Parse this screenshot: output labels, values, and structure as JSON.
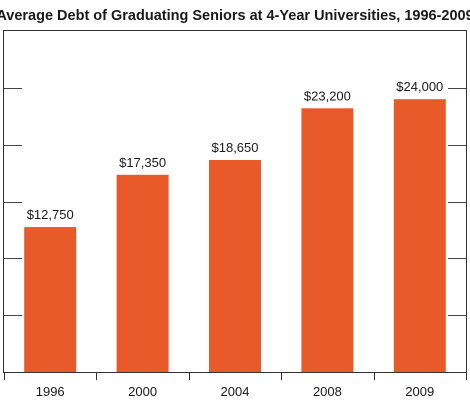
{
  "chart_data": {
    "type": "bar",
    "title": "Average Debt of Graduating Seniors at 4-Year Universities, 1996-2009",
    "categories": [
      "1996",
      "2000",
      "2004",
      "2008",
      "2009"
    ],
    "values": [
      12750,
      17350,
      18650,
      23200,
      24000
    ],
    "value_labels": [
      "$12,750",
      "$17,350",
      "$18,650",
      "$23,200",
      "$24,000"
    ],
    "xlabel": "",
    "ylabel": "",
    "ylim": [
      0,
      30000
    ],
    "y_gridlines": [
      5000,
      10000,
      15000,
      20000,
      25000
    ],
    "grid": true,
    "bar_color": "#e85a2a",
    "axis_color": "#333333",
    "grid_color": "#444444"
  }
}
